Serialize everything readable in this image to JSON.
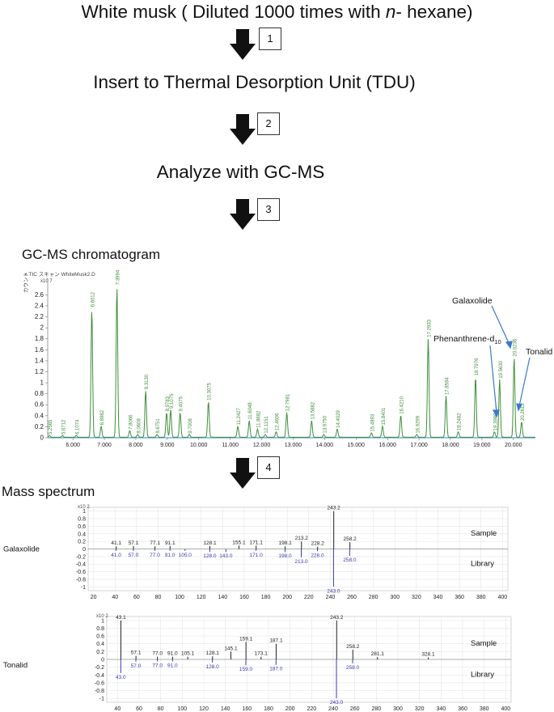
{
  "steps": {
    "s1_prefix": "White musk ( Diluted 1000 times with ",
    "s1_italic": "n",
    "s1_suffix": "- hexane)",
    "s2": "Insert to Thermal Desorption Unit (TDU)",
    "s3": "Analyze with GC-MS",
    "n1": "1",
    "n2": "2",
    "n3": "3",
    "n4": "4"
  },
  "chromatogram": {
    "title": "GC-MS chromatogram",
    "header": "+ TIC スキャン WhiteMusk2.D",
    "yunit": "カウント",
    "scale": "x10 7",
    "ann_galaxolide": "Galaxolide",
    "ann_phen_base": "Phenanthrene-d",
    "ann_phen_sub": "10",
    "ann_tonalid": "Tonalid"
  },
  "mass": {
    "title": "Mass spectrum",
    "legend_sample": "Sample",
    "legend_library": "Library",
    "scale": "x10 2"
  },
  "chart_data": [
    {
      "type": "line",
      "title": "GC-MS chromatogram",
      "xlabel": "",
      "ylabel": "カウント",
      "xlim": [
        5.2,
        20.7
      ],
      "ylim": [
        0,
        2.9
      ],
      "xticks": [
        "6.000",
        "7.000",
        "8.000",
        "9.000",
        "10.000",
        "11.000",
        "12.000",
        "13.000",
        "14.000",
        "15.000",
        "16.000",
        "17.000",
        "18.000",
        "19.000",
        "20.000"
      ],
      "yticks": [
        "0",
        "0.2",
        "0.4",
        "0.6",
        "0.8",
        "1",
        "1.2",
        "1.4",
        "1.6",
        "1.8",
        "2",
        "2.2",
        "2.4",
        "2.6"
      ],
      "color": "#3f8f3a",
      "peaks": [
        {
          "x": 5.2565,
          "y": 0.03,
          "label": "5.2565"
        },
        {
          "x": 5.6712,
          "y": 0.03,
          "label": "5.6712"
        },
        {
          "x": 6.1074,
          "y": 0.03,
          "label": "6.1074"
        },
        {
          "x": 6.6012,
          "y": 2.35,
          "label": "6.6012"
        },
        {
          "x": 6.8982,
          "y": 0.2,
          "label": "6.8982"
        },
        {
          "x": 7.3994,
          "y": 2.75,
          "label": "7.3994"
        },
        {
          "x": 7.8066,
          "y": 0.12,
          "label": "7.8066"
        },
        {
          "x": 8.0608,
          "y": 0.05,
          "label": "8.0608"
        },
        {
          "x": 8.313,
          "y": 0.85,
          "label": "8.3130"
        },
        {
          "x": 8.6751,
          "y": 0.05,
          "label": "8.6751"
        },
        {
          "x": 8.9783,
          "y": 0.45,
          "label": "8.9783"
        },
        {
          "x": 9.1075,
          "y": 0.5,
          "label": "9.1075"
        },
        {
          "x": 9.4075,
          "y": 0.45,
          "label": "9.4075"
        },
        {
          "x": 9.7008,
          "y": 0.05,
          "label": "9.7008"
        },
        {
          "x": 10.3075,
          "y": 0.65,
          "label": "10.3075"
        },
        {
          "x": 11.2427,
          "y": 0.2,
          "label": "11.2427"
        },
        {
          "x": 11.6048,
          "y": 0.3,
          "label": "11.6048"
        },
        {
          "x": 11.8682,
          "y": 0.15,
          "label": "11.8682"
        },
        {
          "x": 12.1151,
          "y": 0.05,
          "label": "12.1151"
        },
        {
          "x": 12.4606,
          "y": 0.1,
          "label": "12.4606"
        },
        {
          "x": 12.7981,
          "y": 0.45,
          "label": "12.7981"
        },
        {
          "x": 13.5882,
          "y": 0.3,
          "label": "13.5882"
        },
        {
          "x": 13.975,
          "y": 0.05,
          "label": "13.9750"
        },
        {
          "x": 14.4029,
          "y": 0.15,
          "label": "14.4029"
        },
        {
          "x": 15.4893,
          "y": 0.08,
          "label": "15.4893"
        },
        {
          "x": 15.8401,
          "y": 0.2,
          "label": "15.8401"
        },
        {
          "x": 16.421,
          "y": 0.4,
          "label": "16.4210"
        },
        {
          "x": 16.9299,
          "y": 0.05,
          "label": "16.9299"
        },
        {
          "x": 17.2933,
          "y": 1.8,
          "label": "17.2933"
        },
        {
          "x": 17.8594,
          "y": 0.75,
          "label": "17.8594"
        },
        {
          "x": 18.2482,
          "y": 0.1,
          "label": "18.2482"
        },
        {
          "x": 18.7976,
          "y": 1.1,
          "label": "18.7976"
        },
        {
          "x": 19.398,
          "y": 0.1,
          "label": "19.3980"
        },
        {
          "x": 19.563,
          "y": 1.05,
          "label": "19.5630"
        },
        {
          "x": 20.0236,
          "y": 1.45,
          "label": "20.0236"
        },
        {
          "x": 20.2612,
          "y": 0.28,
          "label": "20.2612"
        }
      ]
    },
    {
      "type": "bar",
      "title": "Galaxolide",
      "xlim": [
        15,
        405
      ],
      "ylim": [
        -1.1,
        1.1
      ],
      "xticks": [
        20,
        40,
        60,
        80,
        100,
        120,
        140,
        160,
        180,
        200,
        220,
        240,
        260,
        280,
        300,
        320,
        340,
        360,
        380,
        400
      ],
      "yticks": [
        "1",
        "0.8",
        "0.6",
        "0.4",
        "0.2",
        "0",
        "-0.2",
        "-0.4",
        "-0.6",
        "-0.8",
        "-1"
      ],
      "series": [
        {
          "name": "Sample",
          "points": [
            {
              "x": 41.1,
              "y": 0.07,
              "label": "41.1"
            },
            {
              "x": 57.1,
              "y": 0.08,
              "label": "57.1"
            },
            {
              "x": 77.1,
              "y": 0.07,
              "label": "77.1"
            },
            {
              "x": 91.1,
              "y": 0.08,
              "label": "91.1"
            },
            {
              "x": 128.1,
              "y": 0.08,
              "label": "128.1"
            },
            {
              "x": 155.1,
              "y": 0.09,
              "label": "155.1"
            },
            {
              "x": 171.1,
              "y": 0.09,
              "label": "171.1"
            },
            {
              "x": 198.1,
              "y": 0.07,
              "label": "198.1"
            },
            {
              "x": 213.2,
              "y": 0.2,
              "label": "213.2"
            },
            {
              "x": 228.2,
              "y": 0.06,
              "label": "228.2"
            },
            {
              "x": 243.2,
              "y": 1.0,
              "label": "243.2"
            },
            {
              "x": 258.2,
              "y": 0.18,
              "label": "258.2"
            }
          ]
        },
        {
          "name": "Library",
          "points": [
            {
              "x": 41.0,
              "y": -0.05,
              "label": "41.0"
            },
            {
              "x": 57.0,
              "y": -0.05,
              "label": "57.0"
            },
            {
              "x": 77.0,
              "y": -0.05,
              "label": "77.0"
            },
            {
              "x": 91.0,
              "y": -0.05,
              "label": "91.0"
            },
            {
              "x": 105.0,
              "y": -0.05,
              "label": "105.0"
            },
            {
              "x": 128.0,
              "y": -0.08,
              "label": "128.0"
            },
            {
              "x": 143.0,
              "y": -0.08,
              "label": "143.0"
            },
            {
              "x": 171.0,
              "y": -0.05,
              "label": "171.0"
            },
            {
              "x": 198.0,
              "y": -0.08,
              "label": "198.0"
            },
            {
              "x": 213.0,
              "y": -0.22,
              "label": "213.0"
            },
            {
              "x": 228.0,
              "y": -0.06,
              "label": "228.0"
            },
            {
              "x": 243.0,
              "y": -1.0,
              "label": "243.0"
            },
            {
              "x": 258.0,
              "y": -0.18,
              "label": "258.0"
            }
          ]
        }
      ]
    },
    {
      "type": "bar",
      "title": "Tonalid",
      "xlim": [
        30,
        405
      ],
      "ylim": [
        -1.1,
        1.1
      ],
      "xticks": [
        40,
        60,
        80,
        100,
        120,
        140,
        160,
        180,
        200,
        220,
        240,
        260,
        280,
        300,
        320,
        340,
        360,
        380,
        400
      ],
      "yticks": [
        "1",
        "0.8",
        "0.6",
        "0.4",
        "0.2",
        "0",
        "-0.2",
        "-0.4",
        "-0.6",
        "-0.8",
        "-1"
      ],
      "series": [
        {
          "name": "Sample",
          "points": [
            {
              "x": 43.1,
              "y": 1.0,
              "label": "43.1"
            },
            {
              "x": 57.1,
              "y": 0.09,
              "label": "57.1"
            },
            {
              "x": 77.0,
              "y": 0.07,
              "label": "77.0"
            },
            {
              "x": 91.0,
              "y": 0.07,
              "label": "91.0"
            },
            {
              "x": 105.1,
              "y": 0.07,
              "label": "105.1"
            },
            {
              "x": 128.1,
              "y": 0.08,
              "label": "128.1"
            },
            {
              "x": 145.1,
              "y": 0.2,
              "label": "145.1"
            },
            {
              "x": 159.1,
              "y": 0.45,
              "label": "159.1"
            },
            {
              "x": 173.1,
              "y": 0.07,
              "label": "173.1"
            },
            {
              "x": 187.1,
              "y": 0.4,
              "label": "187.1"
            },
            {
              "x": 243.2,
              "y": 1.0,
              "label": "243.2"
            },
            {
              "x": 258.2,
              "y": 0.25,
              "label": "258.2"
            },
            {
              "x": 281.1,
              "y": 0.06,
              "label": "281.1"
            },
            {
              "x": 328.1,
              "y": 0.05,
              "label": "328.1"
            }
          ]
        },
        {
          "name": "Library",
          "points": [
            {
              "x": 43.0,
              "y": -0.35,
              "label": "43.0"
            },
            {
              "x": 57.0,
              "y": -0.06,
              "label": "57.0"
            },
            {
              "x": 77.0,
              "y": -0.05,
              "label": "77.0"
            },
            {
              "x": 91.0,
              "y": -0.05,
              "label": "91.0"
            },
            {
              "x": 128.0,
              "y": -0.08,
              "label": "128.0"
            },
            {
              "x": 159.0,
              "y": -0.15,
              "label": "159.0"
            },
            {
              "x": 187.0,
              "y": -0.14,
              "label": "187.0"
            },
            {
              "x": 243.0,
              "y": -1.0,
              "label": "243.0"
            },
            {
              "x": 258.0,
              "y": -0.1,
              "label": "258.0"
            }
          ]
        }
      ]
    }
  ]
}
